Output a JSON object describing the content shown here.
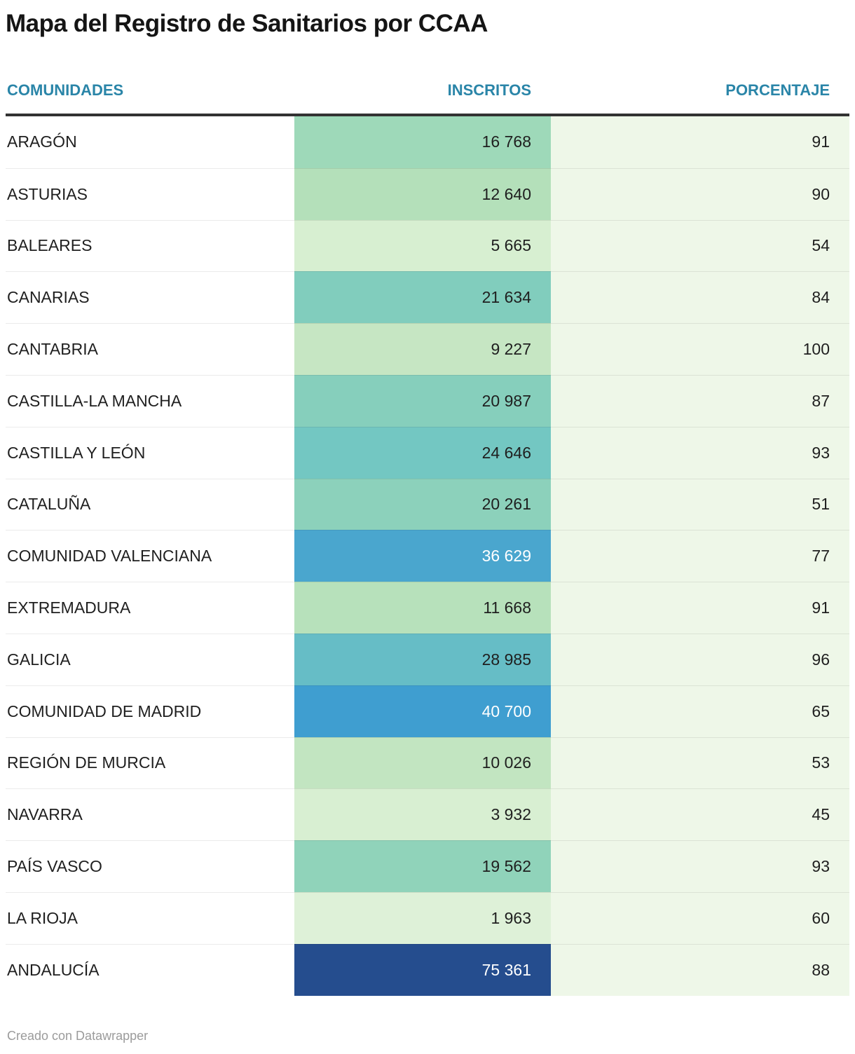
{
  "title": "Mapa del Registro de Sanitarios por CCAA",
  "footer": "Creado con Datawrapper",
  "colors": {
    "header_accent": "#2a85a8",
    "header_border": "#333333",
    "porcentaje_bg": "#eef7e8",
    "row_divider": "rgba(0,0,0,0.08)",
    "title_color": "#151515",
    "body_text": "#1f1f1f",
    "footer_text": "#9b9b9b"
  },
  "chart_data": {
    "type": "table",
    "title": "Mapa del Registro de Sanitarios por CCAA",
    "columns": [
      "COMUNIDADES",
      "INSCRITOS",
      "PORCENTAJE"
    ],
    "color_scale_note": "INSCRITOS column uses a green-to-blue sequential heatmap by value; PORCENTAJE column uniform light green",
    "rows": [
      {
        "comunidad": "ARAGÓN",
        "inscritos": 16768,
        "inscritos_display": "16 768",
        "porcentaje": 91,
        "cell_color": "#9ed9b9",
        "text_color": "#1f1f1f"
      },
      {
        "comunidad": "ASTURIAS",
        "inscritos": 12640,
        "inscritos_display": "12 640",
        "porcentaje": 90,
        "cell_color": "#b4e0ba",
        "text_color": "#1f1f1f"
      },
      {
        "comunidad": "BALEARES",
        "inscritos": 5665,
        "inscritos_display": "5 665",
        "porcentaje": 54,
        "cell_color": "#d7efd1",
        "text_color": "#1f1f1f"
      },
      {
        "comunidad": "CANARIAS",
        "inscritos": 21634,
        "inscritos_display": "21 634",
        "porcentaje": 84,
        "cell_color": "#81cdbd",
        "text_color": "#1f1f1f"
      },
      {
        "comunidad": "CANTABRIA",
        "inscritos": 9227,
        "inscritos_display": "9 227",
        "porcentaje": 100,
        "cell_color": "#c6e6c3",
        "text_color": "#1f1f1f"
      },
      {
        "comunidad": "CASTILLA-LA MANCHA",
        "inscritos": 20987,
        "inscritos_display": "20 987",
        "porcentaje": 87,
        "cell_color": "#86cfbc",
        "text_color": "#1f1f1f"
      },
      {
        "comunidad": "CASTILLA Y LEÓN",
        "inscritos": 24646,
        "inscritos_display": "24 646",
        "porcentaje": 93,
        "cell_color": "#73c7c2",
        "text_color": "#1f1f1f"
      },
      {
        "comunidad": "CATALUÑA",
        "inscritos": 20261,
        "inscritos_display": "20 261",
        "porcentaje": 51,
        "cell_color": "#8cd1bb",
        "text_color": "#1f1f1f"
      },
      {
        "comunidad": "COMUNIDAD VALENCIANA",
        "inscritos": 36629,
        "inscritos_display": "36 629",
        "porcentaje": 77,
        "cell_color": "#4aa6ce",
        "text_color": "#ffffff"
      },
      {
        "comunidad": "EXTREMADURA",
        "inscritos": 11668,
        "inscritos_display": "11 668",
        "porcentaje": 91,
        "cell_color": "#b7e1bb",
        "text_color": "#1f1f1f"
      },
      {
        "comunidad": "GALICIA",
        "inscritos": 28985,
        "inscritos_display": "28 985",
        "porcentaje": 96,
        "cell_color": "#66bdc6",
        "text_color": "#1f1f1f"
      },
      {
        "comunidad": "COMUNIDAD DE MADRID",
        "inscritos": 40700,
        "inscritos_display": "40 700",
        "porcentaje": 65,
        "cell_color": "#3f9ed0",
        "text_color": "#ffffff"
      },
      {
        "comunidad": "REGIÓN DE MURCIA",
        "inscritos": 10026,
        "inscritos_display": "10 026",
        "porcentaje": 53,
        "cell_color": "#c2e5c1",
        "text_color": "#1f1f1f"
      },
      {
        "comunidad": "NAVARRA",
        "inscritos": 3932,
        "inscritos_display": "3 932",
        "porcentaje": 45,
        "cell_color": "#d8efd2",
        "text_color": "#1f1f1f"
      },
      {
        "comunidad": "PAÍS VASCO",
        "inscritos": 19562,
        "inscritos_display": "19 562",
        "porcentaje": 93,
        "cell_color": "#90d3ba",
        "text_color": "#1f1f1f"
      },
      {
        "comunidad": "LA RIOJA",
        "inscritos": 1963,
        "inscritos_display": "1 963",
        "porcentaje": 60,
        "cell_color": "#def1d8",
        "text_color": "#1f1f1f"
      },
      {
        "comunidad": "ANDALUCÍA",
        "inscritos": 75361,
        "inscritos_display": "75 361",
        "porcentaje": 88,
        "cell_color": "#254d8e",
        "text_color": "#ffffff"
      }
    ]
  }
}
